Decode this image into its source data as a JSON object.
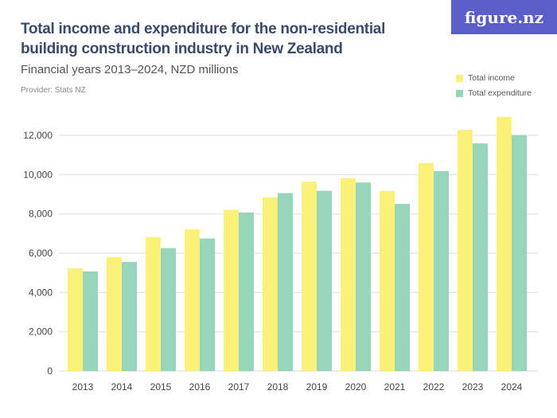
{
  "title": "Total income and expenditure for the non-residential building construction industry in New Zealand",
  "subtitle": "Financial years 2013–2024, NZD millions",
  "provider": "Provider: Stats NZ",
  "logo": "figure.nz",
  "chart_data": {
    "type": "bar",
    "title": "Total income and expenditure for the non-residential building construction industry in New Zealand",
    "subtitle": "Financial years 2013–2024, NZD millions",
    "categories": [
      "2013",
      "2014",
      "2015",
      "2016",
      "2017",
      "2018",
      "2019",
      "2020",
      "2021",
      "2022",
      "2023",
      "2024"
    ],
    "series": [
      {
        "name": "Total income",
        "color": "#f9f17a",
        "values": [
          5230,
          5800,
          6820,
          7220,
          8210,
          8840,
          9640,
          9820,
          9170,
          10590,
          12280,
          12940
        ]
      },
      {
        "name": "Total expenditure",
        "color": "#98d6bb",
        "values": [
          5070,
          5560,
          6260,
          6750,
          8070,
          9060,
          9180,
          9600,
          8510,
          10180,
          11590,
          12010
        ]
      }
    ],
    "ylim": [
      0,
      12000
    ],
    "yticks": [
      "0",
      "2,000",
      "4,000",
      "6,000",
      "8,000",
      "10,000",
      "12,000"
    ],
    "ytick_values": [
      0,
      2000,
      4000,
      6000,
      8000,
      10000,
      12000
    ],
    "grid": true,
    "legend_position": "top-right"
  }
}
